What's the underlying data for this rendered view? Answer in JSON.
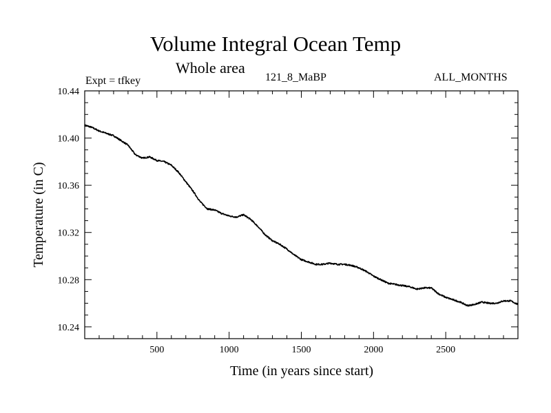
{
  "chart_data": {
    "type": "line",
    "title": "Volume Integral Ocean Temp",
    "subtitle": "Whole area",
    "annotations": {
      "left": "Expt = tfkey",
      "center": "121_8_MaBP",
      "right": "ALL_MONTHS"
    },
    "xlabel": "Time (in years since start)",
    "ylabel": "Temperature (in C)",
    "xlim": [
      0,
      3000
    ],
    "ylim": [
      10.23,
      10.44
    ],
    "xticks": [
      500,
      1000,
      1500,
      2000,
      2500
    ],
    "xtick_labels": [
      "500",
      "1000",
      "1500",
      "2000",
      "2500"
    ],
    "yticks": [
      10.24,
      10.28,
      10.32,
      10.36,
      10.4,
      10.44
    ],
    "ytick_labels": [
      "10.24",
      "10.28",
      "10.32",
      "10.36",
      "10.40",
      "10.44"
    ],
    "grid": false,
    "series": [
      {
        "x": [
          0,
          50,
          100,
          150,
          200,
          250,
          300,
          350,
          400,
          450,
          500,
          550,
          600,
          650,
          700,
          750,
          800,
          850,
          900,
          950,
          1000,
          1050,
          1100,
          1150,
          1200,
          1250,
          1300,
          1350,
          1400,
          1450,
          1500,
          1550,
          1600,
          1650,
          1700,
          1750,
          1800,
          1850,
          1900,
          1950,
          2000,
          2050,
          2100,
          2150,
          2200,
          2250,
          2300,
          2350,
          2400,
          2450,
          2500,
          2550,
          2600,
          2650,
          2700,
          2750,
          2800,
          2850,
          2900,
          2950,
          3000
        ],
        "y": [
          10.411,
          10.409,
          10.406,
          10.404,
          10.402,
          10.398,
          10.394,
          10.386,
          10.383,
          10.384,
          10.381,
          10.38,
          10.377,
          10.371,
          10.363,
          10.355,
          10.346,
          10.34,
          10.339,
          10.336,
          10.334,
          10.333,
          10.335,
          10.331,
          10.325,
          10.318,
          10.313,
          10.31,
          10.306,
          10.301,
          10.297,
          10.295,
          10.293,
          10.293,
          10.294,
          10.293,
          10.293,
          10.292,
          10.29,
          10.287,
          10.283,
          10.28,
          10.277,
          10.276,
          10.275,
          10.274,
          10.272,
          10.273,
          10.273,
          10.268,
          10.265,
          10.263,
          10.261,
          10.258,
          10.259,
          10.261,
          10.26,
          10.26,
          10.262,
          10.262,
          10.259
        ]
      }
    ]
  }
}
